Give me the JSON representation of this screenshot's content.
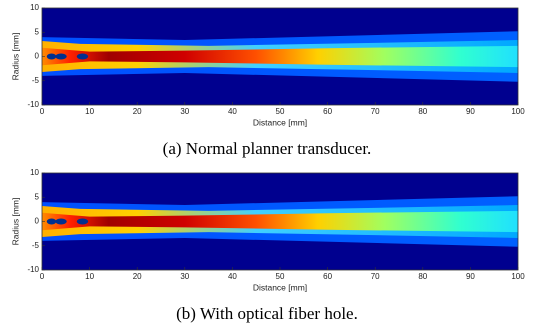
{
  "chart_data": [
    {
      "type": "heatmap",
      "xlabel": "Distance [mm]",
      "ylabel": "Radius [mm]",
      "xlim": [
        0,
        100
      ],
      "ylim": [
        -10,
        10
      ],
      "xticks": [
        0,
        10,
        20,
        30,
        40,
        50,
        60,
        70,
        80,
        90,
        100
      ],
      "yticks": [
        -10,
        -5,
        0,
        5,
        10
      ],
      "caption": "(a) Normal planner transducer."
    },
    {
      "type": "heatmap",
      "xlabel": "Distance [mm]",
      "ylabel": "Radius [mm]",
      "xlim": [
        0,
        100
      ],
      "ylim": [
        -10,
        10
      ],
      "xticks": [
        0,
        10,
        20,
        30,
        40,
        50,
        60,
        70,
        80,
        90,
        100
      ],
      "yticks": [
        -10,
        -5,
        0,
        5,
        10
      ],
      "caption": "(b) With optical fiber hole."
    }
  ]
}
